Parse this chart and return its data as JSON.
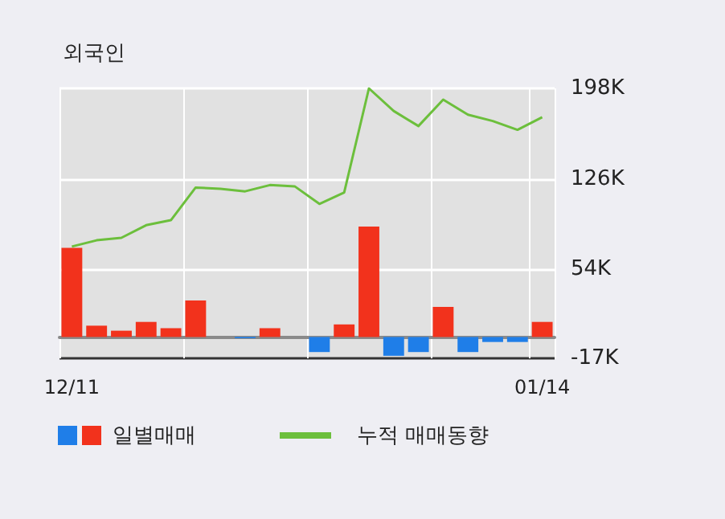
{
  "chart_data": {
    "type": "bar",
    "title": "외국인",
    "categories": [
      "12/11",
      null,
      null,
      null,
      null,
      null,
      null,
      null,
      null,
      null,
      null,
      null,
      null,
      null,
      null,
      null,
      null,
      null,
      null,
      "01/14"
    ],
    "series": [
      {
        "name": "일별매매",
        "colors": [
          "#f2321c",
          "#f2321c",
          "#f2321c",
          "#f2321c",
          "#f2321c",
          "#f2321c",
          "#f2321c",
          "#1f7ee8",
          "#f2321c",
          "#f2321c",
          "#1f7ee8",
          "#f2321c",
          "#f2321c",
          "#1f7ee8",
          "#1f7ee8",
          "#f2321c",
          "#1f7ee8",
          "#1f7ee8",
          "#1f7ee8",
          "#f2321c"
        ],
        "values": [
          71000,
          9000,
          5000,
          12000,
          7000,
          29000,
          0,
          -1000,
          7000,
          0,
          -12000,
          10000,
          88000,
          -15000,
          -12000,
          24000,
          -12000,
          -4000,
          -4000,
          12000
        ]
      },
      {
        "name": "누적 매매동향",
        "type": "line",
        "color": "#6cbf3c",
        "values": [
          72000,
          77000,
          79000,
          89000,
          93000,
          119000,
          118000,
          116000,
          121000,
          120000,
          106000,
          115000,
          198000,
          180000,
          168000,
          189000,
          177000,
          172000,
          165000,
          175000
        ]
      }
    ],
    "ylim": [
      -17000,
      198000
    ],
    "yticks": [
      {
        "value": -17000,
        "label": "-17K"
      },
      {
        "value": 54000,
        "label": "54K"
      },
      {
        "value": 126000,
        "label": "126K"
      },
      {
        "value": 198000,
        "label": "198K"
      }
    ],
    "grid": true,
    "legend": "bottom",
    "marker": "none",
    "line_style": "solid"
  }
}
